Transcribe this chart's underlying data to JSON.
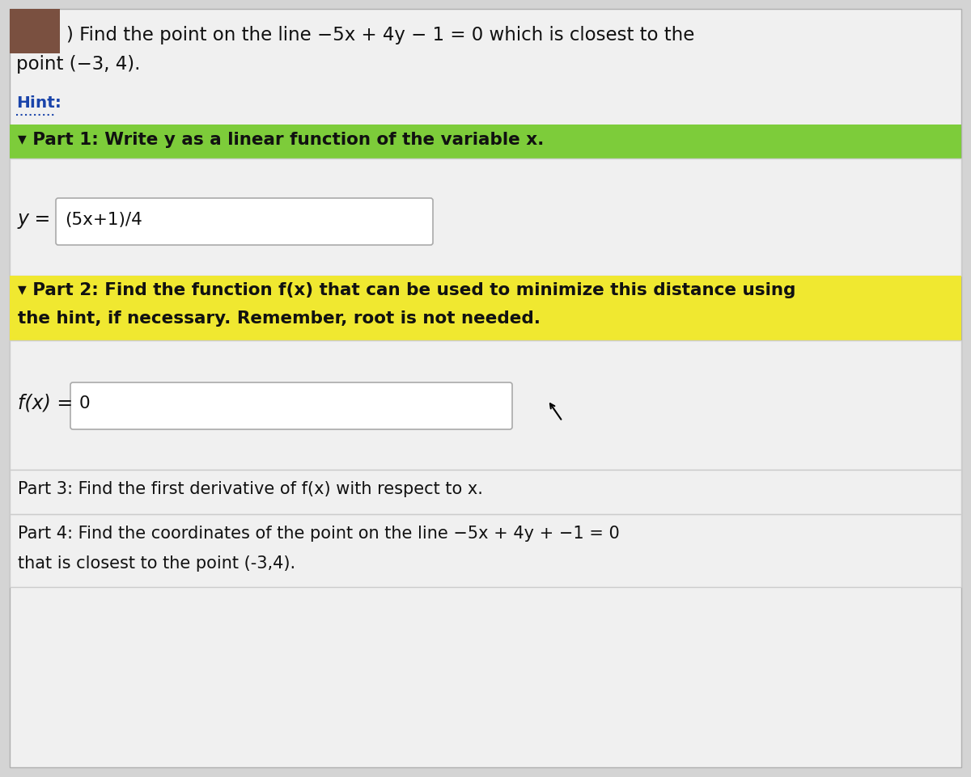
{
  "bg_color": "#d4d4d4",
  "white_bg": "#f5f5f5",
  "content_bg": "#f0f0f0",
  "top_brown_rect": "#7a5040",
  "green_bar_color": "#7dcc3a",
  "yellow_bar_color": "#f0e830",
  "input_box_color": "#ffffff",
  "input_box_border": "#aaaaaa",
  "section_border": "#cccccc",
  "hint_blue": "#1a44aa",
  "text_color": "#111111",
  "title_line1": ") Find the point on the line −5x + 4y − 1 = 0 which is closest to the",
  "title_line2": "point (−3, 4).",
  "hint_label": "Hint:",
  "part1_label": "▾ Part 1: Write y as a linear function of the variable x.",
  "y_prefix": "y = ",
  "y_answer": "(5x+1)/4",
  "part2_line1": "▾ Part 2: Find the function f(x) that can be used to minimize this distance using",
  "part2_line2": "the hint, if necessary. Remember, root is not needed.",
  "fx_prefix": "f(x) = ",
  "fx_answer": "0",
  "part3_label": "Part 3: Find the first derivative of f(x) with respect to x.",
  "part4_line1": "Part 4: Find the coordinates of the point on the line −5x + 4y + −1 = 0",
  "part4_line2": "that is closest to the point (-3,4).",
  "figsize": [
    12.0,
    9.62
  ],
  "dpi": 100
}
